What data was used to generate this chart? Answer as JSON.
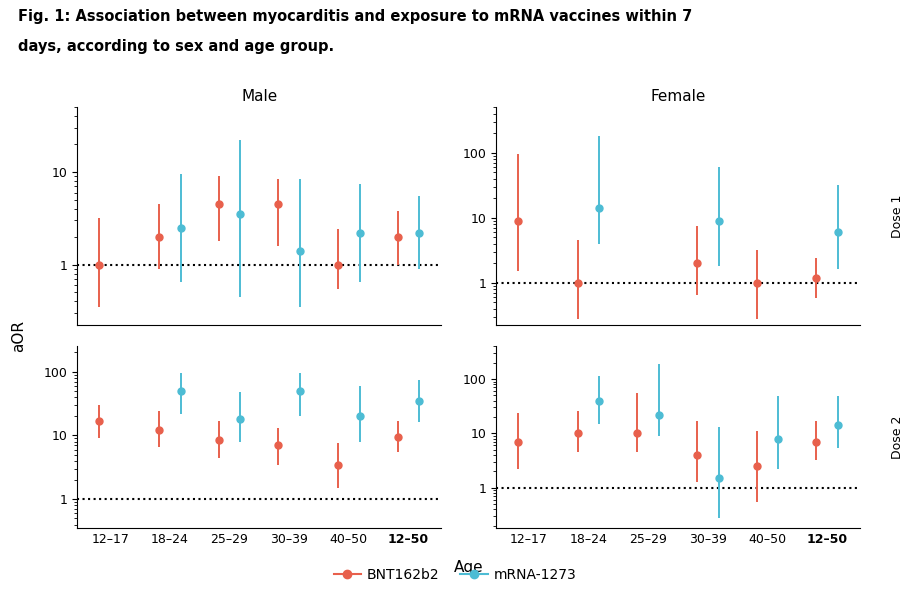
{
  "title_line1": "Fig. 1: Association between myocarditis and exposure to mRNA vaccines within 7",
  "title_line2": "days, according to sex and age group.",
  "age_labels": [
    "12–17",
    "18–24",
    "25–29",
    "30–39",
    "40–50",
    "12–50"
  ],
  "age_labels_bold": [
    false,
    false,
    false,
    false,
    false,
    true
  ],
  "color_bnt": "#E8604C",
  "color_mrna": "#4DBCD4",
  "panels": {
    "male_dose1": {
      "bnt_mid": [
        1.0,
        2.0,
        4.5,
        4.5,
        1.0,
        2.0
      ],
      "bnt_lo": [
        0.35,
        0.9,
        1.8,
        1.6,
        0.55,
        1.0
      ],
      "bnt_hi": [
        3.2,
        4.5,
        9.0,
        8.5,
        2.4,
        3.8
      ],
      "mrna_mid": [
        null,
        2.5,
        3.5,
        1.4,
        2.2,
        2.2
      ],
      "mrna_lo": [
        null,
        0.65,
        0.45,
        0.35,
        0.65,
        0.9
      ],
      "mrna_hi": [
        null,
        9.5,
        22.0,
        8.5,
        7.5,
        5.5
      ]
    },
    "male_dose2": {
      "bnt_mid": [
        17.0,
        12.0,
        8.5,
        7.0,
        3.5,
        9.5
      ],
      "bnt_lo": [
        9.0,
        6.5,
        4.5,
        3.5,
        1.5,
        5.5
      ],
      "bnt_hi": [
        30.0,
        24.0,
        17.0,
        13.0,
        7.5,
        17.0
      ],
      "mrna_mid": [
        null,
        50.0,
        18.0,
        50.0,
        20.0,
        35.0
      ],
      "mrna_lo": [
        null,
        22.0,
        8.0,
        20.0,
        8.0,
        16.0
      ],
      "mrna_hi": [
        null,
        95.0,
        48.0,
        95.0,
        60.0,
        75.0
      ]
    },
    "female_dose1": {
      "bnt_mid": [
        9.0,
        1.0,
        null,
        2.0,
        1.0,
        1.2
      ],
      "bnt_lo": [
        1.5,
        0.28,
        null,
        0.65,
        0.28,
        0.58
      ],
      "bnt_hi": [
        95.0,
        4.5,
        null,
        7.5,
        3.2,
        2.4
      ],
      "mrna_mid": [
        null,
        14.0,
        null,
        9.0,
        null,
        6.0
      ],
      "mrna_lo": [
        null,
        4.0,
        null,
        1.8,
        null,
        1.6
      ],
      "mrna_hi": [
        null,
        180.0,
        null,
        60.0,
        null,
        32.0
      ]
    },
    "female_dose2": {
      "bnt_mid": [
        7.0,
        10.0,
        10.0,
        4.0,
        2.5,
        7.0
      ],
      "bnt_lo": [
        2.2,
        4.5,
        4.5,
        1.3,
        0.55,
        3.2
      ],
      "bnt_hi": [
        24.0,
        26.0,
        55.0,
        17.0,
        11.0,
        17.0
      ],
      "mrna_mid": [
        null,
        40.0,
        22.0,
        1.5,
        8.0,
        14.0
      ],
      "mrna_lo": [
        null,
        15.0,
        9.0,
        0.28,
        2.2,
        5.5
      ],
      "mrna_hi": [
        null,
        115.0,
        190.0,
        13.0,
        48.0,
        48.0
      ]
    }
  },
  "xlabel": "Age",
  "ylabel": "aOR",
  "legend_bnt": "BNT162b2",
  "legend_mrna": "mRNA-1273",
  "dose1_label": "Dose 1",
  "dose2_label": "Dose 2",
  "male_label": "Male",
  "female_label": "Female"
}
